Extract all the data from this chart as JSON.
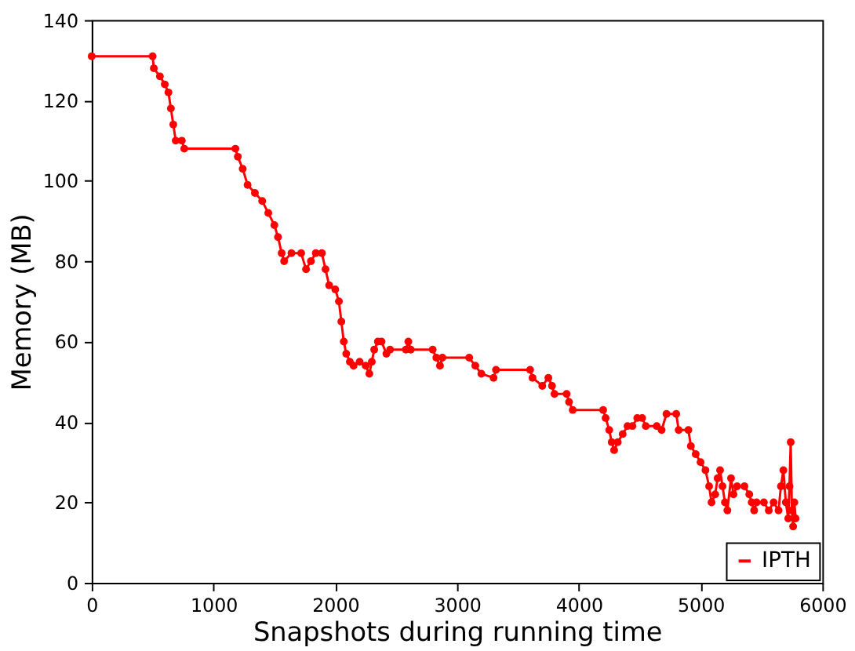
{
  "chart_data": {
    "type": "line",
    "xlabel": "Snapshots during running time",
    "ylabel": "Memory (MB)",
    "xlim": [
      0,
      6000
    ],
    "xticks": [
      0,
      1000,
      2000,
      3000,
      4000,
      5000,
      6000
    ],
    "ylim": [
      0,
      140
    ],
    "yticks": [
      0,
      20,
      40,
      60,
      80,
      100,
      120,
      140
    ],
    "grid": false,
    "legend": "bottom right",
    "marker": "circle",
    "line_style": "solid",
    "series": [
      {
        "name": "IPTH",
        "color": "#ff0000",
        "x": [
          0,
          500,
          510,
          560,
          600,
          630,
          650,
          670,
          690,
          740,
          760,
          1180,
          1200,
          1240,
          1280,
          1340,
          1400,
          1450,
          1500,
          1530,
          1560,
          1580,
          1640,
          1720,
          1760,
          1800,
          1840,
          1890,
          1920,
          1950,
          2000,
          2030,
          2050,
          2070,
          2090,
          2120,
          2150,
          2200,
          2250,
          2280,
          2300,
          2320,
          2350,
          2380,
          2420,
          2450,
          2580,
          2600,
          2620,
          2800,
          2830,
          2860,
          2880,
          3100,
          3150,
          3200,
          3300,
          3320,
          3600,
          3620,
          3700,
          3750,
          3780,
          3800,
          3900,
          3920,
          3950,
          4200,
          4220,
          4250,
          4270,
          4290,
          4320,
          4360,
          4400,
          4440,
          4480,
          4520,
          4550,
          4640,
          4680,
          4720,
          4800,
          4820,
          4900,
          4920,
          4960,
          5000,
          5040,
          5070,
          5090,
          5120,
          5140,
          5160,
          5180,
          5200,
          5220,
          5250,
          5270,
          5300,
          5360,
          5400,
          5420,
          5440,
          5460,
          5520,
          5560,
          5600,
          5640,
          5660,
          5680,
          5700,
          5720,
          5730,
          5740,
          5750,
          5760,
          5770,
          5780
        ],
        "values": [
          131,
          131,
          128,
          126,
          124,
          122,
          118,
          114,
          110,
          110,
          108,
          108,
          106,
          103,
          99,
          97,
          95,
          92,
          89,
          86,
          82,
          80,
          82,
          82,
          78,
          80,
          82,
          82,
          78,
          74,
          73,
          70,
          65,
          60,
          57,
          55,
          54,
          55,
          54,
          52,
          55,
          58,
          60,
          60,
          57,
          58,
          58,
          60,
          58,
          58,
          56,
          54,
          56,
          56,
          54,
          52,
          51,
          53,
          53,
          51,
          49,
          51,
          49,
          47,
          47,
          45,
          43,
          43,
          41,
          38,
          35,
          33,
          35,
          37,
          39,
          39,
          41,
          41,
          39,
          39,
          38,
          42,
          42,
          38,
          38,
          34,
          32,
          30,
          28,
          24,
          20,
          22,
          26,
          28,
          24,
          20,
          18,
          26,
          22,
          24,
          24,
          22,
          20,
          18,
          20,
          20,
          18,
          20,
          18,
          24,
          28,
          20,
          16,
          24,
          35,
          18,
          14,
          20,
          16
        ]
      }
    ]
  }
}
